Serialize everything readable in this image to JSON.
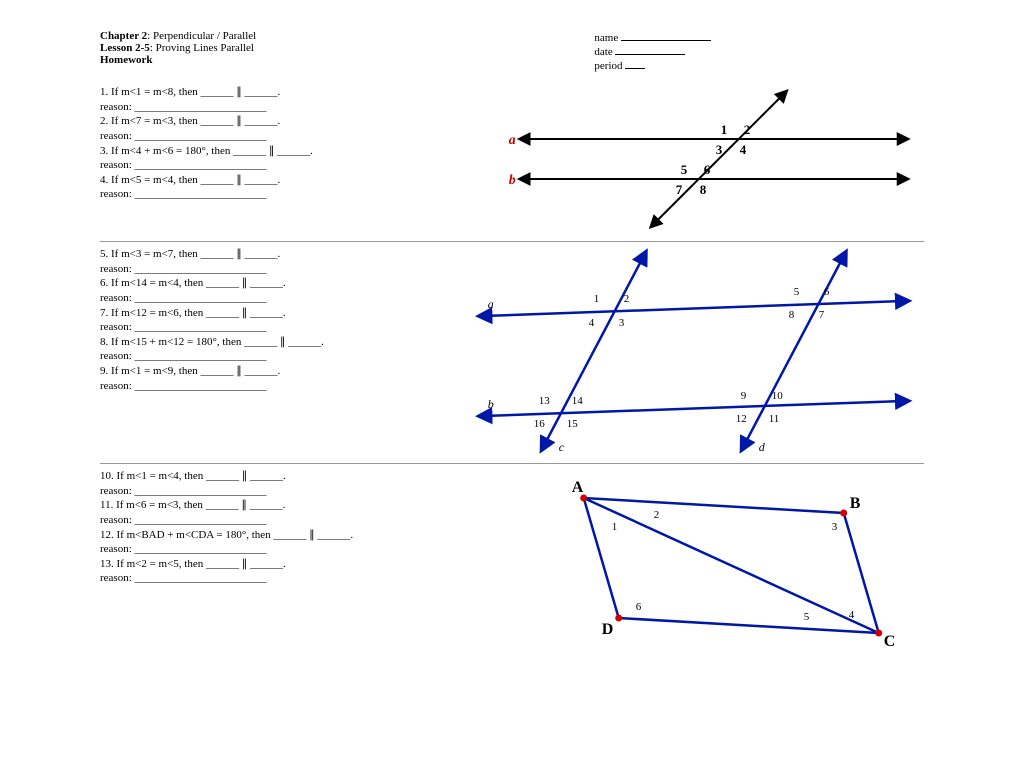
{
  "header": {
    "chapter_bold": "Chapter 2",
    "chapter_rest": ": Perpendicular / Parallel",
    "lesson_bold": "Lesson 2-5",
    "lesson_rest": ": Proving Lines Parallel",
    "homework": "Homework",
    "name": "name",
    "date": "date",
    "period": "period"
  },
  "questions_s1": [
    {
      "n": "1",
      "t": "If m<1 = m<8, then ______ ∥ ______."
    },
    {
      "n": "2",
      "t": "If m<7 = m<3, then ______ ∥ ______."
    },
    {
      "n": "3",
      "t": "If m<4 + m<6 = 180°, then ______ ∥ ______."
    },
    {
      "n": "4",
      "t": "If m<5 = m<4, then ______ ∥ ______."
    }
  ],
  "questions_s2": [
    {
      "n": "5",
      "t": "If m<3 = m<7, then ______ ∥ ______."
    },
    {
      "n": "6",
      "t": "If m<14 = m<4, then ______ ∥ ______."
    },
    {
      "n": "7",
      "t": "If m<12 = m<6, then ______ ∥ ______."
    },
    {
      "n": "8",
      "t": "If m<15 + m<12 = 180°, then ______ ∥ ______."
    },
    {
      "n": "9",
      "t": "If m<1 = m<9, then ______ ∥ ______."
    }
  ],
  "questions_s3": [
    {
      "n": "10",
      "t": "If m<1 = m<4, then ______ ∥ ______."
    },
    {
      "n": "11",
      "t": "If m<6 = m<3, then ______ ∥ ______."
    },
    {
      "n": "12",
      "t": "If m<BAD + m<CDA = 180°, then ______ ∥ ______."
    },
    {
      "n": "13",
      "t": "If m<2 = m<5, then ______ ∥ ______."
    }
  ],
  "reason_label": "reason: ________________________",
  "colors": {
    "line_blue": "#0017a8",
    "label_red": "#cc0000",
    "text_black": "#000000",
    "point_red": "#d40000"
  },
  "diagram1": {
    "line_a_label": "a",
    "line_b_label": "b",
    "nums": [
      "1",
      "2",
      "3",
      "4",
      "5",
      "6",
      "7",
      "8"
    ]
  },
  "diagram2": {
    "line_labels": {
      "a": "a",
      "b": "b",
      "c": "c",
      "d": "d"
    },
    "nums": [
      "1",
      "2",
      "3",
      "4",
      "5",
      "6",
      "7",
      "8",
      "9",
      "10",
      "11",
      "12",
      "13",
      "14",
      "15",
      "16"
    ]
  },
  "diagram3": {
    "vertices": {
      "A": "A",
      "B": "B",
      "C": "C",
      "D": "D"
    },
    "nums": [
      "1",
      "2",
      "3",
      "4",
      "5",
      "6"
    ]
  }
}
